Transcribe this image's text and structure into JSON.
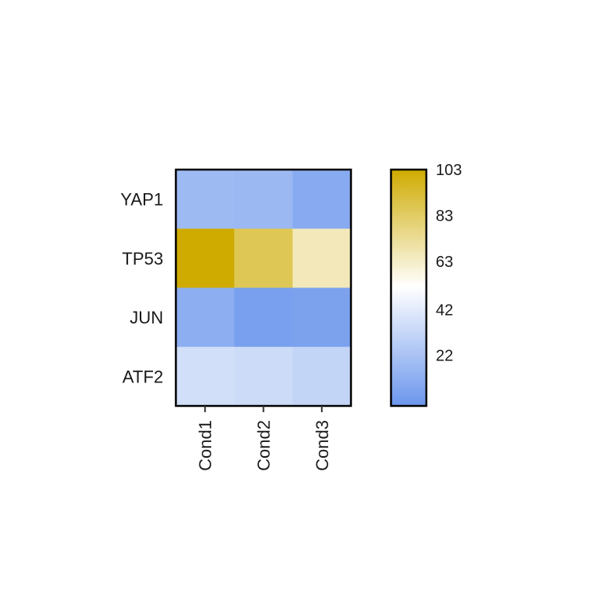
{
  "chart_data": {
    "type": "heatmap",
    "title": "",
    "xlabel": "",
    "ylabel": "",
    "rows": [
      "YAP1",
      "TP53",
      "JUN",
      "ATF2"
    ],
    "columns": [
      "Cond1",
      "Cond2",
      "Cond3"
    ],
    "values": [
      [
        18,
        17,
        10
      ],
      [
        103,
        86,
        66
      ],
      [
        12,
        5,
        6
      ],
      [
        36,
        34,
        31
      ]
    ],
    "colorbar": {
      "min": 0,
      "max": 103,
      "ticks": [
        22,
        42,
        63,
        83,
        103
      ],
      "tick_labels": [
        "22",
        "42",
        "63",
        "83",
        "103"
      ],
      "colors": {
        "low": "#6b96ec",
        "mid": "#ffffff",
        "high": "#cfab00"
      },
      "mid_value": 52
    },
    "legend_position": "right",
    "grid": false
  }
}
